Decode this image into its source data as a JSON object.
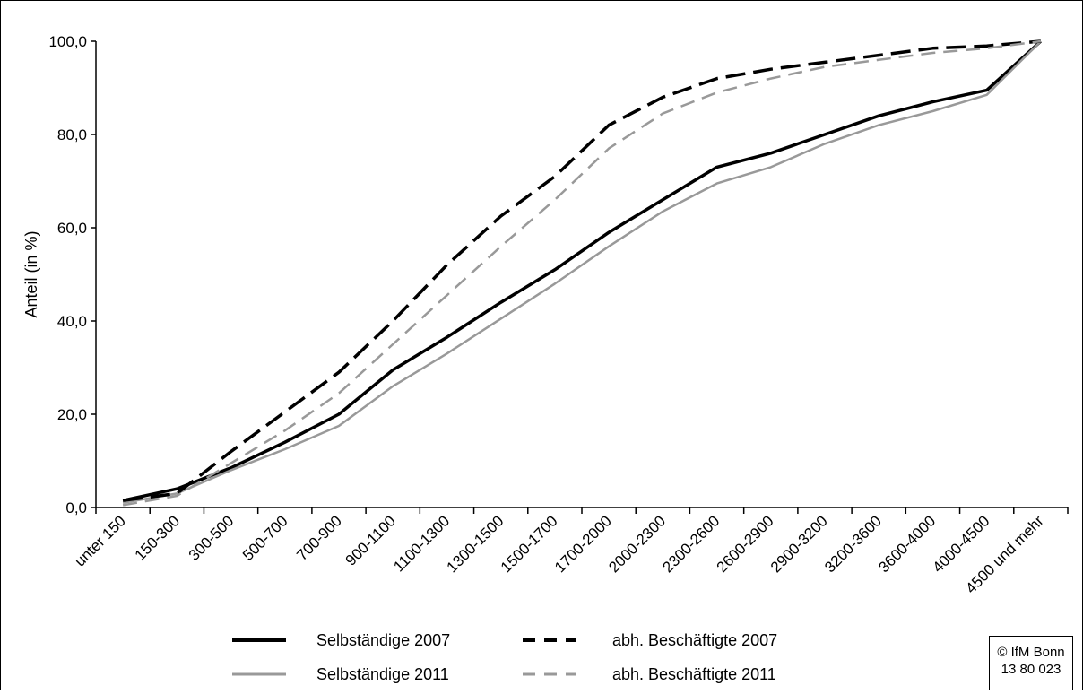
{
  "chart_data": {
    "type": "line",
    "ylabel": "Anteil (in %)",
    "xlabel": "",
    "ylim": [
      0,
      100
    ],
    "yticks": [
      "0,0",
      "20,0",
      "40,0",
      "60,0",
      "80,0",
      "100,0"
    ],
    "categories": [
      "unter 150",
      "150-300",
      "300-500",
      "500-700",
      "700-900",
      "900-1100",
      "1100-1300",
      "1300-1500",
      "1500-1700",
      "1700-2000",
      "2000-2300",
      "2300-2600",
      "2600-2900",
      "2900-3200",
      "3200-3600",
      "3600-4000",
      "4000-4500",
      "4500 und mehr"
    ],
    "grid": false,
    "legend_position": "bottom",
    "series": [
      {
        "name": "Selbständige 2007",
        "color": "#000000",
        "style": "solid",
        "values": [
          1.5,
          4.0,
          8.5,
          14.0,
          20.0,
          29.5,
          36.5,
          44.0,
          51.0,
          59.0,
          66.0,
          73.0,
          76.0,
          80.0,
          84.0,
          87.0,
          89.5,
          100.0
        ]
      },
      {
        "name": "Selbständige 2011",
        "color": "#999999",
        "style": "solid",
        "values": [
          1.0,
          3.0,
          8.0,
          12.5,
          17.5,
          26.0,
          33.0,
          40.5,
          48.0,
          56.0,
          63.5,
          69.5,
          73.0,
          78.0,
          82.0,
          85.0,
          88.5,
          100.0
        ]
      },
      {
        "name": "abh. Beschäftigte 2007",
        "color": "#000000",
        "style": "dashed",
        "values": [
          1.5,
          3.0,
          12.0,
          20.5,
          29.0,
          40.0,
          52.0,
          62.5,
          71.0,
          82.0,
          88.0,
          92.0,
          94.0,
          95.5,
          97.0,
          98.5,
          99.0,
          100.0
        ]
      },
      {
        "name": "abh. Beschäftigte 2011",
        "color": "#999999",
        "style": "dashed",
        "values": [
          0.5,
          2.5,
          9.5,
          16.5,
          24.5,
          35.0,
          45.5,
          56.0,
          66.0,
          77.0,
          84.5,
          89.0,
          92.0,
          94.5,
          96.0,
          97.5,
          98.5,
          100.0
        ]
      }
    ]
  },
  "credit": {
    "line1": "© IfM Bonn",
    "line2": "13  80  023"
  }
}
